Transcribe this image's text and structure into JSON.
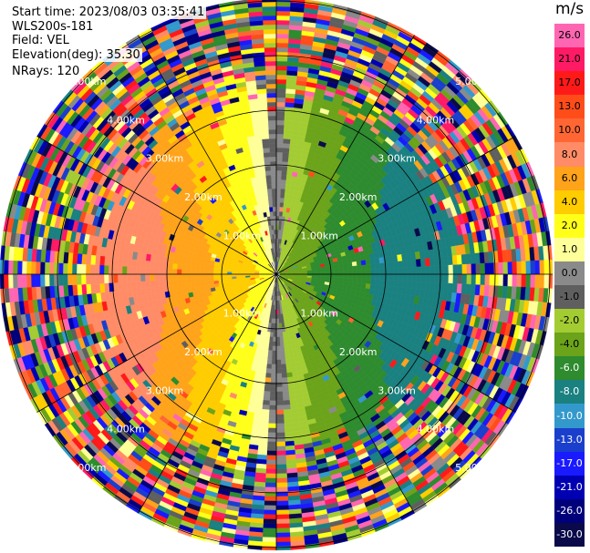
{
  "info": {
    "start_time": "Start time: 2023/08/03 03:35:41",
    "instrument": "WLS200s-181",
    "field": "Field: VEL",
    "elevation": "Elevation(deg): 35.30",
    "nrays": "NRays: 120"
  },
  "colorbar": {
    "unit": "m/s",
    "ticks": [
      "26.0",
      "21.0",
      "17.0",
      "13.0",
      "10.0",
      "8.0",
      "6.0",
      "4.0",
      "2.0",
      "1.0",
      "0.0",
      "-1.0",
      "-2.0",
      "-4.0",
      "-6.0",
      "-8.0",
      "-10.0",
      "-13.0",
      "-17.0",
      "-21.0",
      "-26.0",
      "-30.0"
    ],
    "colors": [
      "#ff66b2",
      "#ff1a66",
      "#ff1a1a",
      "#ff4d1a",
      "#ff6633",
      "#ff8c66",
      "#ffa31a",
      "#ffcc00",
      "#ffff1a",
      "#ffff99",
      "#8a8a8a",
      "#5f5f5f",
      "#a3cc33",
      "#6ba31a",
      "#2e8b2e",
      "#1a8080",
      "#3399cc",
      "#1a3fcc",
      "#1a1aff",
      "#0000b3",
      "#00007a",
      "#0a0a4a"
    ]
  },
  "rings": {
    "labels": [
      "1.00km",
      "2.00km",
      "3.00km",
      "4.00km",
      "5.00km"
    ]
  }
}
